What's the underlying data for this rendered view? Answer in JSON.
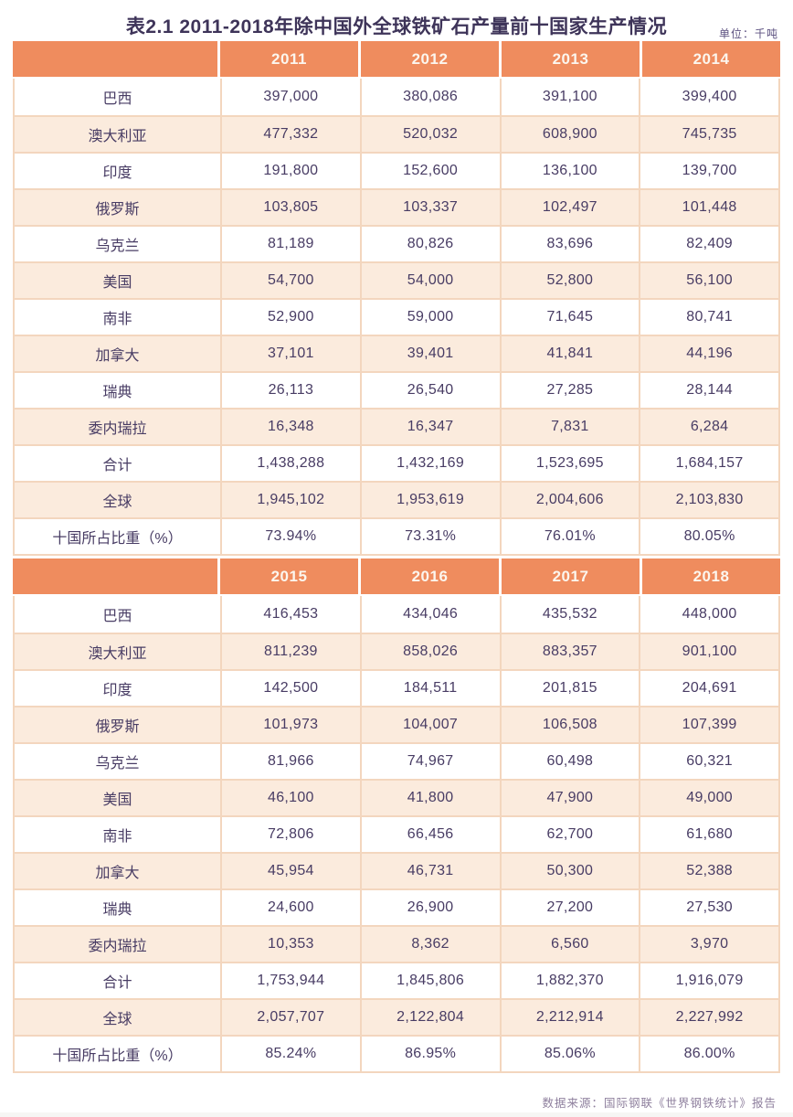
{
  "page": {
    "title": "表2.1 2011-2018年除中国外全球铁矿石产量前十国家生产情况",
    "unit_label": "单位：千吨",
    "source_note": "数据来源：国际钢联《世界钢铁统计》报告"
  },
  "colors": {
    "header_bg": "#EF8C5E",
    "stripe_bg": "#FBEBDD",
    "grid_line": "#F3D6BE",
    "text": "#483C64",
    "header_text": "#FCF6EE",
    "title_text": "#3E3459",
    "note_text": "#8E7F9D"
  },
  "table": {
    "sections": [
      {
        "years": [
          "2011",
          "2012",
          "2013",
          "2014"
        ],
        "rows": [
          {
            "label": "巴西",
            "values": [
              "397,000",
              "380,086",
              "391,100",
              "399,400"
            ]
          },
          {
            "label": "澳大利亚",
            "values": [
              "477,332",
              "520,032",
              "608,900",
              "745,735"
            ]
          },
          {
            "label": "印度",
            "values": [
              "191,800",
              "152,600",
              "136,100",
              "139,700"
            ]
          },
          {
            "label": "俄罗斯",
            "values": [
              "103,805",
              "103,337",
              "102,497",
              "101,448"
            ]
          },
          {
            "label": "乌克兰",
            "values": [
              "81,189",
              "80,826",
              "83,696",
              "82,409"
            ]
          },
          {
            "label": "美国",
            "values": [
              "54,700",
              "54,000",
              "52,800",
              "56,100"
            ]
          },
          {
            "label": "南非",
            "values": [
              "52,900",
              "59,000",
              "71,645",
              "80,741"
            ]
          },
          {
            "label": "加拿大",
            "values": [
              "37,101",
              "39,401",
              "41,841",
              "44,196"
            ]
          },
          {
            "label": "瑞典",
            "values": [
              "26,113",
              "26,540",
              "27,285",
              "28,144"
            ]
          },
          {
            "label": "委内瑞拉",
            "values": [
              "16,348",
              "16,347",
              "7,831",
              "6,284"
            ]
          },
          {
            "label": "合计",
            "values": [
              "1,438,288",
              "1,432,169",
              "1,523,695",
              "1,684,157"
            ]
          },
          {
            "label": "全球",
            "values": [
              "1,945,102",
              "1,953,619",
              "2,004,606",
              "2,103,830"
            ]
          },
          {
            "label": "十国所占比重（%）",
            "values": [
              "73.94%",
              "73.31%",
              "76.01%",
              "80.05%"
            ]
          }
        ]
      },
      {
        "years": [
          "2015",
          "2016",
          "2017",
          "2018"
        ],
        "rows": [
          {
            "label": "巴西",
            "values": [
              "416,453",
              "434,046",
              "435,532",
              "448,000"
            ]
          },
          {
            "label": "澳大利亚",
            "values": [
              "811,239",
              "858,026",
              "883,357",
              "901,100"
            ]
          },
          {
            "label": "印度",
            "values": [
              "142,500",
              "184,511",
              "201,815",
              "204,691"
            ]
          },
          {
            "label": "俄罗斯",
            "values": [
              "101,973",
              "104,007",
              "106,508",
              "107,399"
            ]
          },
          {
            "label": "乌克兰",
            "values": [
              "81,966",
              "74,967",
              "60,498",
              "60,321"
            ]
          },
          {
            "label": "美国",
            "values": [
              "46,100",
              "41,800",
              "47,900",
              "49,000"
            ]
          },
          {
            "label": "南非",
            "values": [
              "72,806",
              "66,456",
              "62,700",
              "61,680"
            ]
          },
          {
            "label": "加拿大",
            "values": [
              "45,954",
              "46,731",
              "50,300",
              "52,388"
            ]
          },
          {
            "label": "瑞典",
            "values": [
              "24,600",
              "26,900",
              "27,200",
              "27,530"
            ]
          },
          {
            "label": "委内瑞拉",
            "values": [
              "10,353",
              "8,362",
              "6,560",
              "3,970"
            ]
          },
          {
            "label": "合计",
            "values": [
              "1,753,944",
              "1,845,806",
              "1,882,370",
              "1,916,079"
            ]
          },
          {
            "label": "全球",
            "values": [
              "2,057,707",
              "2,122,804",
              "2,212,914",
              "2,227,992"
            ]
          },
          {
            "label": "十国所占比重（%）",
            "values": [
              "85.24%",
              "86.95%",
              "85.06%",
              "86.00%"
            ]
          }
        ]
      }
    ]
  },
  "chart_data": {
    "type": "table",
    "title": "表2.1 2011-2018年除中国外全球铁矿石产量前十国家生产情况",
    "unit": "千吨",
    "columns": [
      "2011",
      "2012",
      "2013",
      "2014",
      "2015",
      "2016",
      "2017",
      "2018"
    ],
    "rows": [
      {
        "label": "巴西",
        "values": [
          397000,
          380086,
          391100,
          399400,
          416453,
          434046,
          435532,
          448000
        ]
      },
      {
        "label": "澳大利亚",
        "values": [
          477332,
          520032,
          608900,
          745735,
          811239,
          858026,
          883357,
          901100
        ]
      },
      {
        "label": "印度",
        "values": [
          191800,
          152600,
          136100,
          139700,
          142500,
          184511,
          201815,
          204691
        ]
      },
      {
        "label": "俄罗斯",
        "values": [
          103805,
          103337,
          102497,
          101448,
          101973,
          104007,
          106508,
          107399
        ]
      },
      {
        "label": "乌克兰",
        "values": [
          81189,
          80826,
          83696,
          82409,
          81966,
          74967,
          60498,
          60321
        ]
      },
      {
        "label": "美国",
        "values": [
          54700,
          54000,
          52800,
          56100,
          46100,
          41800,
          47900,
          49000
        ]
      },
      {
        "label": "南非",
        "values": [
          52900,
          59000,
          71645,
          80741,
          72806,
          66456,
          62700,
          61680
        ]
      },
      {
        "label": "加拿大",
        "values": [
          37101,
          39401,
          41841,
          44196,
          45954,
          46731,
          50300,
          52388
        ]
      },
      {
        "label": "瑞典",
        "values": [
          26113,
          26540,
          27285,
          28144,
          24600,
          26900,
          27200,
          27530
        ]
      },
      {
        "label": "委内瑞拉",
        "values": [
          16348,
          16347,
          7831,
          6284,
          10353,
          8362,
          6560,
          3970
        ]
      },
      {
        "label": "合计",
        "values": [
          1438288,
          1432169,
          1523695,
          1684157,
          1753944,
          1845806,
          1882370,
          1916079
        ]
      },
      {
        "label": "全球",
        "values": [
          1945102,
          1953619,
          2004606,
          2103830,
          2057707,
          2122804,
          2212914,
          2227992
        ]
      },
      {
        "label": "十国所占比重（%）",
        "values": [
          "73.94%",
          "73.31%",
          "76.01%",
          "80.05%",
          "85.24%",
          "86.95%",
          "85.06%",
          "86.00%"
        ]
      }
    ]
  }
}
